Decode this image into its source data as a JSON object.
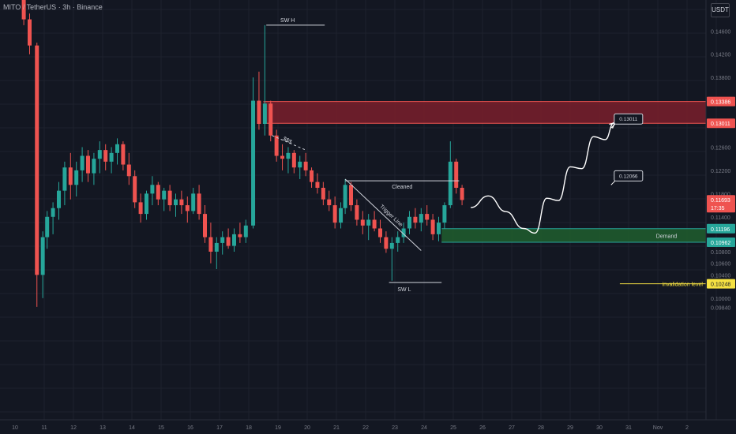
{
  "header": {
    "title": "MITO / TetherUS · 3h · Binance",
    "currency": "USDT"
  },
  "colors": {
    "background": "#131722",
    "up": "#26a69a",
    "down": "#ef5350",
    "supply_zone": "#7a1f2b",
    "demand_zone": "#1f5a2e",
    "text": "#d1d4dc",
    "axis_text": "#787b86",
    "invalidation": "#f5e142"
  },
  "chart_data": {
    "type": "candlestick",
    "title": "MITO / TetherUS · 3h · Binance",
    "x_ticks": [
      "10",
      "11",
      "12",
      "13",
      "14",
      "15",
      "16",
      "17",
      "18",
      "19",
      "20",
      "21",
      "22",
      "23",
      "24",
      "25",
      "26",
      "27",
      "28",
      "29",
      "30",
      "31",
      "Nov",
      "2"
    ],
    "y_ticks": [
      "0.14600",
      "0.14200",
      "0.13800",
      "0.12600",
      "0.12200",
      "0.11800",
      "0.11400",
      "0.10800",
      "0.10600",
      "0.10400",
      "0.10000",
      "0.09840"
    ],
    "ylim": [
      0.0966,
      0.1495
    ],
    "price_labels": [
      {
        "text": "0.13386",
        "value": 0.13386,
        "color": "#ef5350"
      },
      {
        "text": "0.13011",
        "value": 0.13011,
        "color": "#ef5350"
      },
      {
        "text": "0.11693",
        "sub": "17:35",
        "value": 0.11693,
        "color": "#ef5350"
      },
      {
        "text": "0.11196",
        "value": 0.11196,
        "color": "#26a69a"
      },
      {
        "text": "0.10962",
        "value": 0.10962,
        "color": "#26a69a"
      },
      {
        "text": "0.10248",
        "value": 0.10248,
        "color": "#f5e142"
      }
    ],
    "supply_zone": {
      "top": 0.13386,
      "bottom": 0.13011,
      "start_day": 18.5
    },
    "demand_zone": {
      "top": 0.11196,
      "bottom": 0.10962,
      "start_day": 24.6,
      "label": "Demand"
    },
    "swing_high": {
      "label": "SW H",
      "price": 0.147,
      "start_day": 18.6,
      "end_day": 20.6
    },
    "swing_low": {
      "label": "SW L",
      "price": 0.1027,
      "start_day": 22.8,
      "end_day": 24.6
    },
    "liquidity": {
      "label": "$$$",
      "start_day": 18.8,
      "start_price": 0.128,
      "end_day": 19.95,
      "end_price": 0.1255
    },
    "cleaned": {
      "label": "Cleaned",
      "price": 0.1202,
      "start_day": 21.3,
      "end_day": 25.2
    },
    "trigger_line": {
      "label": "Trigger Line",
      "start_day": 21.3,
      "start_price": 0.1205,
      "end_day": 23.9,
      "end_price": 0.1082
    },
    "invalidation": {
      "label": "invalidation level",
      "price": 0.10248,
      "start_day": 30.7
    },
    "targets": [
      {
        "label": "0.13011",
        "day": 30.4,
        "price": 0.1312
      },
      {
        "label": "0.12066",
        "day": 30.4,
        "price": 0.1214
      }
    ],
    "projection": [
      [
        25.6,
        0.1156
      ],
      [
        26.2,
        0.1176
      ],
      [
        26.8,
        0.1149
      ],
      [
        27.4,
        0.112
      ],
      [
        27.8,
        0.1112
      ],
      [
        28.2,
        0.1172
      ],
      [
        28.6,
        0.1168
      ],
      [
        29.0,
        0.1226
      ],
      [
        29.4,
        0.1223
      ],
      [
        29.8,
        0.1278
      ],
      [
        30.2,
        0.1273
      ],
      [
        30.5,
        0.1302
      ]
    ],
    "candles": [
      [
        10.3,
        0.16,
        0.16,
        0.147,
        0.148
      ],
      [
        10.5,
        0.148,
        0.149,
        0.142,
        0.1435
      ],
      [
        10.75,
        0.1435,
        0.144,
        0.0985,
        0.104
      ],
      [
        10.95,
        0.104,
        0.1115,
        0.1,
        0.1105
      ],
      [
        11.1,
        0.1105,
        0.115,
        0.1085,
        0.114
      ],
      [
        11.3,
        0.114,
        0.1165,
        0.111,
        0.1155
      ],
      [
        11.5,
        0.1155,
        0.12,
        0.1135,
        0.1185
      ],
      [
        11.7,
        0.1185,
        0.1235,
        0.116,
        0.1225
      ],
      [
        11.9,
        0.1225,
        0.125,
        0.117,
        0.1195
      ],
      [
        12.1,
        0.1195,
        0.1235,
        0.1175,
        0.122
      ],
      [
        12.3,
        0.122,
        0.126,
        0.12,
        0.1245
      ],
      [
        12.5,
        0.1245,
        0.1255,
        0.12,
        0.1215
      ],
      [
        12.7,
        0.1215,
        0.125,
        0.1195,
        0.124
      ],
      [
        12.9,
        0.124,
        0.127,
        0.1215,
        0.1255
      ],
      [
        13.1,
        0.1255,
        0.1265,
        0.122,
        0.1235
      ],
      [
        13.3,
        0.1235,
        0.126,
        0.1215,
        0.125
      ],
      [
        13.5,
        0.125,
        0.1275,
        0.123,
        0.1265
      ],
      [
        13.7,
        0.1265,
        0.127,
        0.122,
        0.123
      ],
      [
        13.9,
        0.123,
        0.125,
        0.1195,
        0.121
      ],
      [
        14.1,
        0.121,
        0.122,
        0.1155,
        0.1165
      ],
      [
        14.3,
        0.1165,
        0.118,
        0.113,
        0.1145
      ],
      [
        14.5,
        0.1145,
        0.1185,
        0.1135,
        0.118
      ],
      [
        14.7,
        0.118,
        0.121,
        0.116,
        0.1195
      ],
      [
        14.9,
        0.1195,
        0.12,
        0.116,
        0.117
      ],
      [
        15.1,
        0.117,
        0.119,
        0.115,
        0.1185
      ],
      [
        15.3,
        0.1185,
        0.1195,
        0.115,
        0.116
      ],
      [
        15.5,
        0.116,
        0.118,
        0.114,
        0.117
      ],
      [
        15.7,
        0.117,
        0.1185,
        0.1145,
        0.116
      ],
      [
        15.9,
        0.116,
        0.1175,
        0.113,
        0.115
      ],
      [
        16.1,
        0.115,
        0.119,
        0.1145,
        0.118
      ],
      [
        16.3,
        0.118,
        0.1195,
        0.1135,
        0.1145
      ],
      [
        16.5,
        0.1145,
        0.116,
        0.1095,
        0.1105
      ],
      [
        16.7,
        0.1105,
        0.113,
        0.106,
        0.108
      ],
      [
        16.9,
        0.108,
        0.1105,
        0.105,
        0.1095
      ],
      [
        17.1,
        0.1095,
        0.1115,
        0.1075,
        0.1105
      ],
      [
        17.3,
        0.1105,
        0.112,
        0.1085,
        0.109
      ],
      [
        17.5,
        0.109,
        0.112,
        0.108,
        0.111
      ],
      [
        17.7,
        0.111,
        0.113,
        0.1095,
        0.1105
      ],
      [
        17.9,
        0.1105,
        0.1135,
        0.1095,
        0.1125
      ],
      [
        18.15,
        0.1125,
        0.138,
        0.112,
        0.134
      ],
      [
        18.35,
        0.134,
        0.139,
        0.129,
        0.13
      ],
      [
        18.55,
        0.13,
        0.147,
        0.128,
        0.1335
      ],
      [
        18.75,
        0.1335,
        0.134,
        0.127,
        0.128
      ],
      [
        18.95,
        0.128,
        0.129,
        0.1235,
        0.1245
      ],
      [
        19.15,
        0.1245,
        0.1265,
        0.122,
        0.124
      ],
      [
        19.35,
        0.124,
        0.126,
        0.1215,
        0.125
      ],
      [
        19.55,
        0.125,
        0.1255,
        0.1215,
        0.1225
      ],
      [
        19.75,
        0.1225,
        0.1245,
        0.1205,
        0.1235
      ],
      [
        19.95,
        0.1235,
        0.125,
        0.121,
        0.122
      ],
      [
        20.15,
        0.122,
        0.1225,
        0.119,
        0.12
      ],
      [
        20.35,
        0.12,
        0.1215,
        0.118,
        0.119
      ],
      [
        20.55,
        0.119,
        0.12,
        0.116,
        0.117
      ],
      [
        20.75,
        0.117,
        0.1185,
        0.115,
        0.116
      ],
      [
        20.95,
        0.116,
        0.1175,
        0.112,
        0.113
      ],
      [
        21.15,
        0.113,
        0.1165,
        0.112,
        0.1155
      ],
      [
        21.3,
        0.1155,
        0.1205,
        0.1145,
        0.1195
      ],
      [
        21.5,
        0.1195,
        0.12,
        0.115,
        0.116
      ],
      [
        21.7,
        0.116,
        0.117,
        0.1125,
        0.1135
      ],
      [
        21.9,
        0.1135,
        0.115,
        0.111,
        0.1125
      ],
      [
        22.1,
        0.1125,
        0.1145,
        0.11,
        0.1135
      ],
      [
        22.3,
        0.1135,
        0.115,
        0.1115,
        0.112
      ],
      [
        22.5,
        0.112,
        0.1135,
        0.1095,
        0.1105
      ],
      [
        22.7,
        0.1105,
        0.1115,
        0.1078,
        0.1085
      ],
      [
        22.9,
        0.1085,
        0.1105,
        0.103,
        0.1095
      ],
      [
        23.1,
        0.1095,
        0.1115,
        0.108,
        0.1105
      ],
      [
        23.3,
        0.1105,
        0.113,
        0.1095,
        0.112
      ],
      [
        23.5,
        0.112,
        0.115,
        0.111,
        0.114
      ],
      [
        23.7,
        0.114,
        0.1155,
        0.112,
        0.113
      ],
      [
        23.9,
        0.113,
        0.1155,
        0.1115,
        0.1145
      ],
      [
        24.1,
        0.1145,
        0.116,
        0.1125,
        0.1135
      ],
      [
        24.3,
        0.1135,
        0.1145,
        0.11,
        0.111
      ],
      [
        24.5,
        0.111,
        0.114,
        0.1098,
        0.113
      ],
      [
        24.7,
        0.113,
        0.1165,
        0.112,
        0.116
      ],
      [
        24.9,
        0.116,
        0.127,
        0.1155,
        0.1235
      ],
      [
        25.1,
        0.1235,
        0.124,
        0.118,
        0.119
      ],
      [
        25.3,
        0.119,
        0.1195,
        0.116,
        0.1169
      ]
    ]
  }
}
